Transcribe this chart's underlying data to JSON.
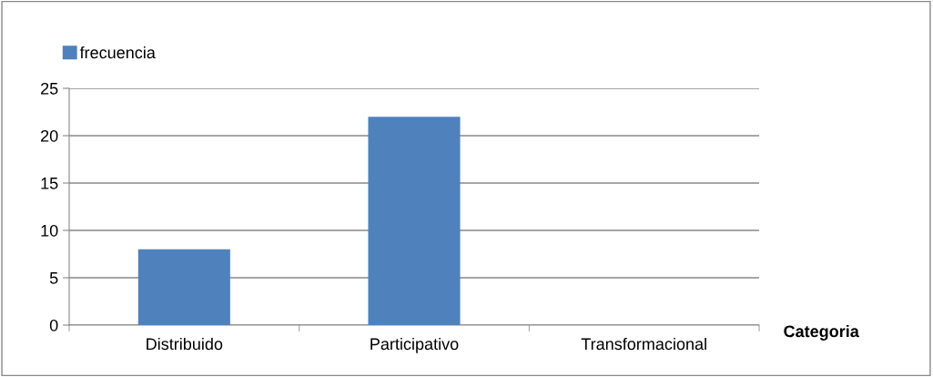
{
  "chart_data": {
    "type": "bar",
    "xlabel": "Categoria",
    "categories": [
      "Distribuido",
      "Participativo",
      "Transformacional"
    ],
    "series": [
      {
        "name": "frecuencia",
        "color": "#4f81bd",
        "values": [
          8,
          22,
          0
        ]
      }
    ],
    "ylim": [
      0,
      25
    ],
    "yticks": [
      0,
      5,
      10,
      15,
      20,
      25
    ],
    "grid": "y",
    "legend": "top left"
  }
}
